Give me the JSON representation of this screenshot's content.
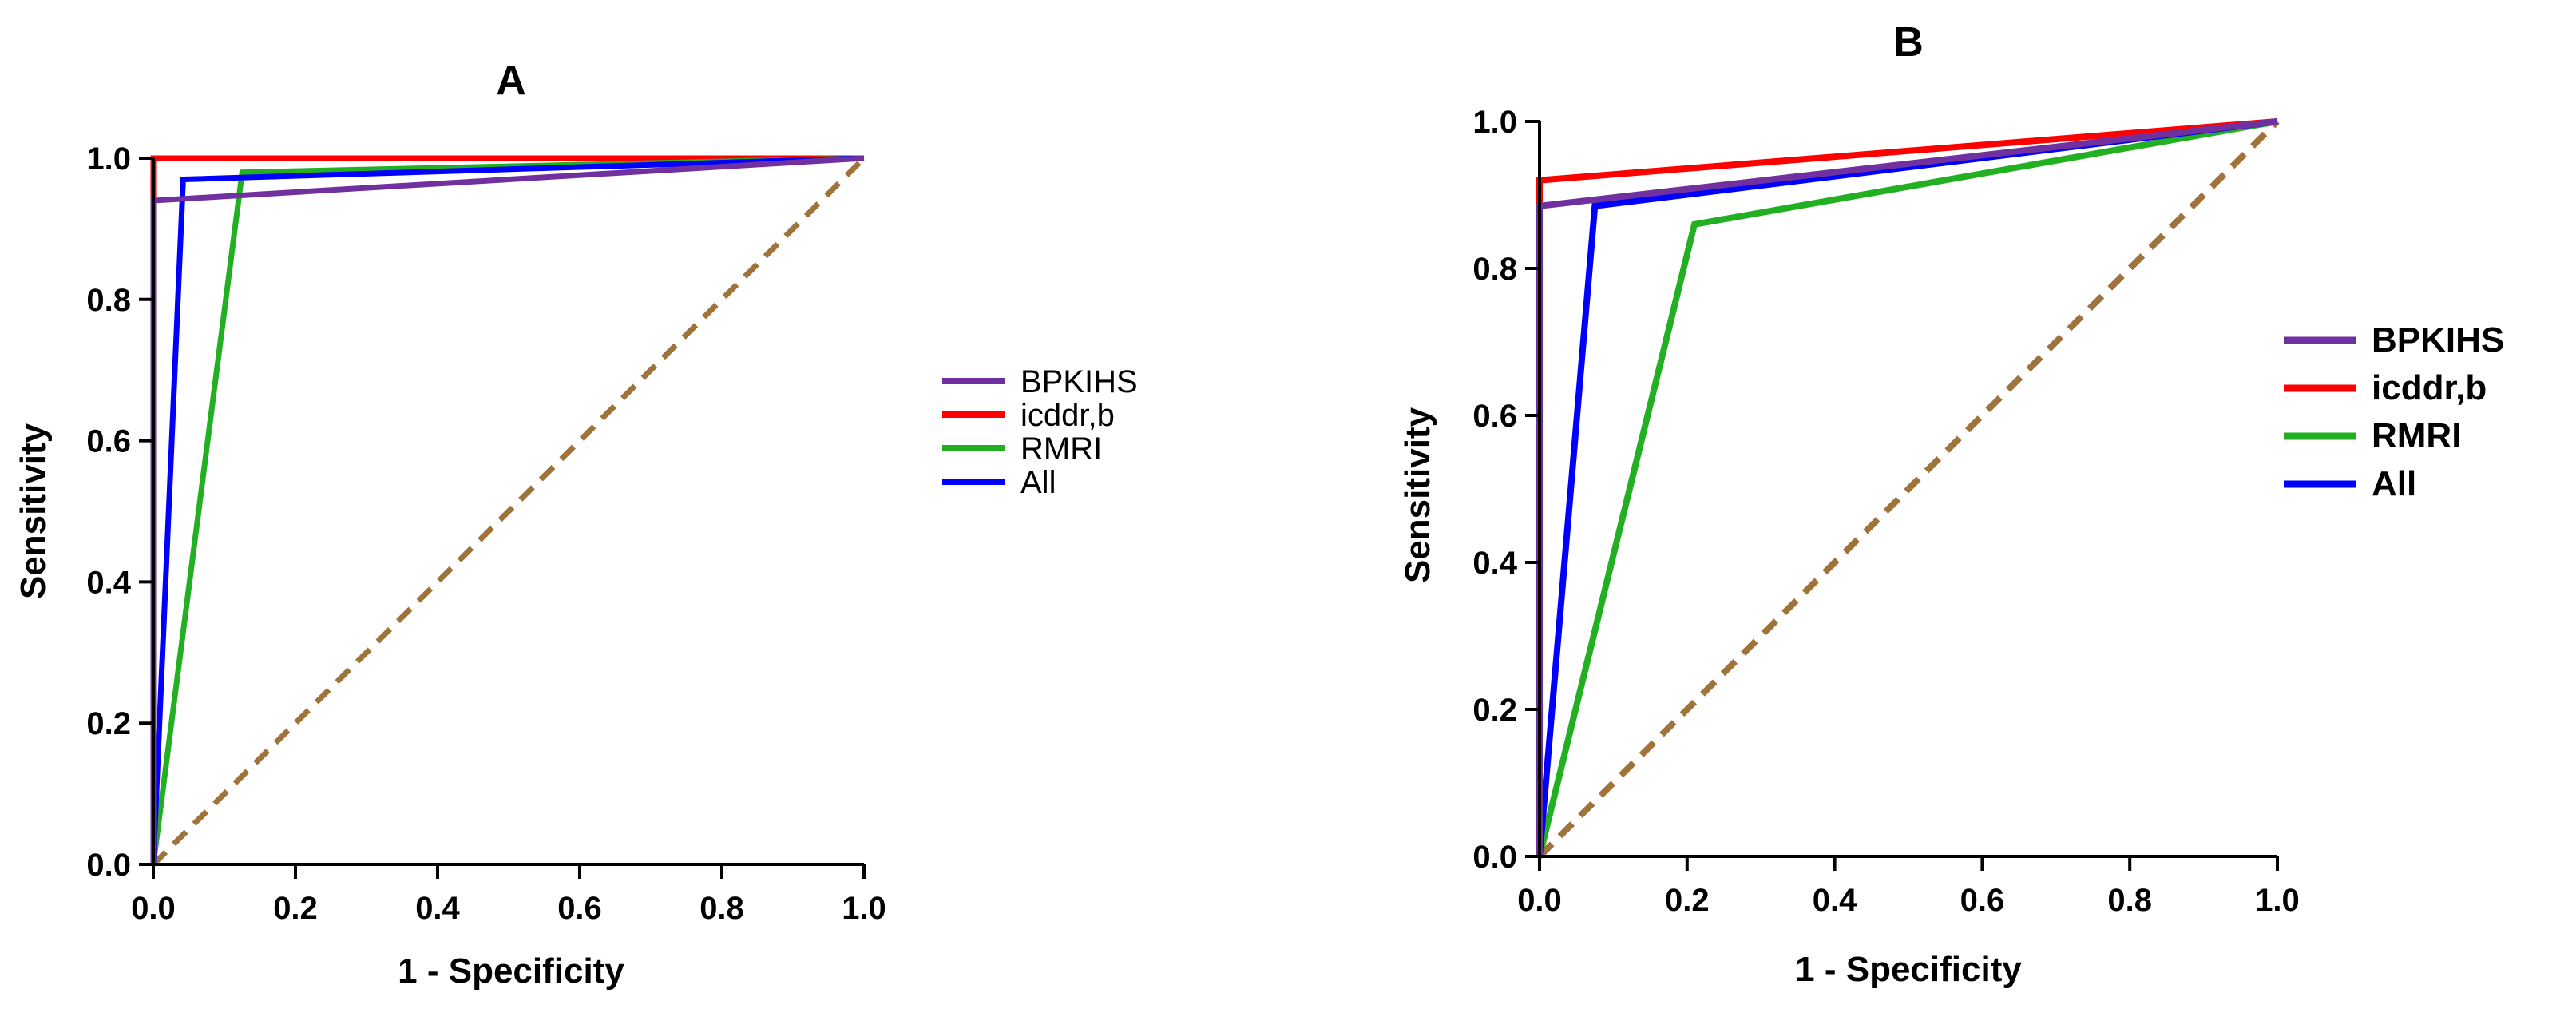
{
  "chart_data": [
    {
      "type": "line",
      "title": "A",
      "xlabel": "1 - Specificity",
      "ylabel": "Sensitivity",
      "xlim": [
        0,
        1.0
      ],
      "ylim": [
        0,
        1.0
      ],
      "xticks": [
        "0.0",
        "0.2",
        "0.4",
        "0.6",
        "0.8",
        "1.0"
      ],
      "yticks": [
        "0.0",
        "0.2",
        "0.4",
        "0.6",
        "0.8",
        "1.0"
      ],
      "legend_position": "right",
      "series": [
        {
          "name": "BPKIHS",
          "color": "#7030a0",
          "x": [
            0,
            0,
            1
          ],
          "y": [
            0,
            0.94,
            1
          ]
        },
        {
          "name": "icddr,b",
          "color": "#ff0000",
          "x": [
            0,
            0,
            1
          ],
          "y": [
            0,
            1.0,
            1
          ]
        },
        {
          "name": "RMRI",
          "color": "#22b022",
          "x": [
            0,
            0.125,
            1
          ],
          "y": [
            0,
            0.98,
            1
          ]
        },
        {
          "name": "All",
          "color": "#0000ff",
          "x": [
            0,
            0.042,
            1
          ],
          "y": [
            0,
            0.97,
            1
          ]
        }
      ],
      "reference": {
        "color": "#a0733a",
        "x": [
          0,
          1
        ],
        "y": [
          0,
          1
        ]
      }
    },
    {
      "type": "line",
      "title": "B",
      "xlabel": "1 - Specificity",
      "ylabel": "Sensitivity",
      "xlim": [
        0,
        1.0
      ],
      "ylim": [
        0,
        1.0
      ],
      "xticks": [
        "0.0",
        "0.2",
        "0.4",
        "0.6",
        "0.8",
        "1.0"
      ],
      "yticks": [
        "0.0",
        "0.2",
        "0.4",
        "0.6",
        "0.8",
        "1.0"
      ],
      "legend_position": "right",
      "series": [
        {
          "name": "BPKIHS",
          "color": "#7030a0",
          "x": [
            0,
            0,
            1
          ],
          "y": [
            0,
            0.885,
            1
          ]
        },
        {
          "name": "icddr,b",
          "color": "#ff0000",
          "x": [
            0,
            0,
            1
          ],
          "y": [
            0,
            0.92,
            1
          ]
        },
        {
          "name": "RMRI",
          "color": "#22b022",
          "x": [
            0,
            0.21,
            1
          ],
          "y": [
            0,
            0.86,
            1
          ]
        },
        {
          "name": "All",
          "color": "#0000ff",
          "x": [
            0,
            0.075,
            1
          ],
          "y": [
            0,
            0.885,
            1
          ]
        }
      ],
      "reference": {
        "color": "#a0733a",
        "x": [
          0,
          1
        ],
        "y": [
          0,
          1
        ]
      }
    }
  ]
}
